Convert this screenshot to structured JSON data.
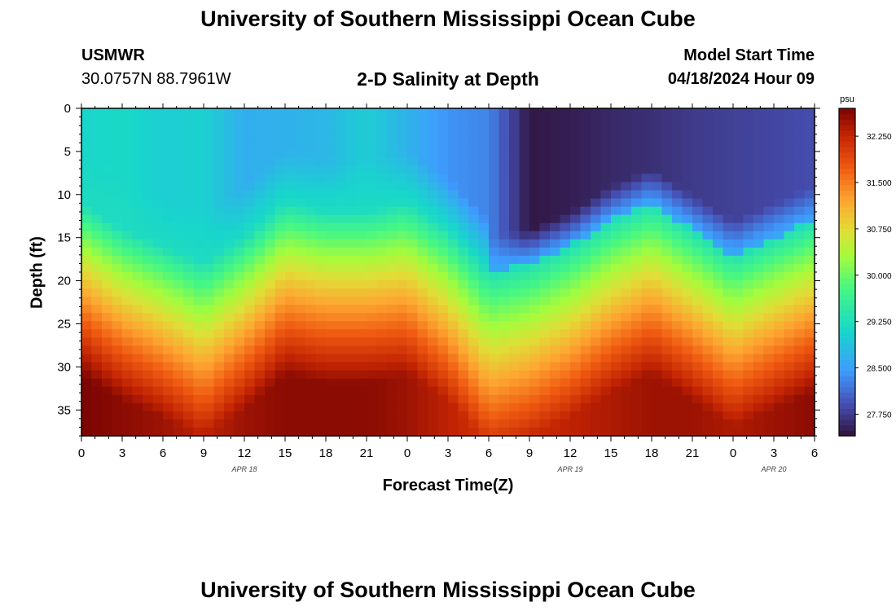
{
  "header": {
    "title_top": "University of Southern Mississippi Ocean Cube",
    "title_bottom": "University of Southern Mississippi Ocean Cube",
    "station": "USMWR",
    "coordinates": "30.0757N  88.7961W",
    "plot_title": "2-D Salinity at Depth",
    "start_label": "Model Start Time",
    "start_value": "04/18/2024 Hour 09"
  },
  "chart_data": {
    "type": "heatmap",
    "title": "2-D Salinity at Depth",
    "xlabel": "Forecast Time(Z)",
    "ylabel": "Depth (ft)",
    "x_range_hours": [
      0,
      54
    ],
    "y_range_ft": [
      0,
      38
    ],
    "x_ticks": [
      {
        "h": 0,
        "label": "0"
      },
      {
        "h": 3,
        "label": "3"
      },
      {
        "h": 6,
        "label": "6"
      },
      {
        "h": 9,
        "label": "9"
      },
      {
        "h": 12,
        "label": "12"
      },
      {
        "h": 15,
        "label": "15"
      },
      {
        "h": 18,
        "label": "18"
      },
      {
        "h": 21,
        "label": "21"
      },
      {
        "h": 24,
        "label": "0"
      },
      {
        "h": 27,
        "label": "3"
      },
      {
        "h": 30,
        "label": "6"
      },
      {
        "h": 33,
        "label": "9"
      },
      {
        "h": 36,
        "label": "12"
      },
      {
        "h": 39,
        "label": "15"
      },
      {
        "h": 42,
        "label": "18"
      },
      {
        "h": 45,
        "label": "21"
      },
      {
        "h": 48,
        "label": "0"
      },
      {
        "h": 51,
        "label": "3"
      },
      {
        "h": 54,
        "label": "6"
      }
    ],
    "date_labels": [
      {
        "h": 12,
        "label": "APR 18"
      },
      {
        "h": 36,
        "label": "APR 19"
      },
      {
        "h": 51,
        "label": "APR 20"
      }
    ],
    "y_ticks": [
      0,
      5,
      10,
      15,
      20,
      25,
      30,
      35
    ],
    "colorbar": {
      "unit": "psu",
      "min": 27.4,
      "max": 32.7,
      "ticks": [
        "27.750",
        "28.500",
        "29.250",
        "30.000",
        "30.750",
        "31.500",
        "32.250"
      ]
    },
    "fresh_top_boundary": {
      "hours": [
        0,
        3,
        6,
        9,
        12,
        15,
        18,
        21,
        24,
        27,
        30,
        33,
        36,
        39,
        42,
        45,
        48,
        51,
        54
      ],
      "depth_ft": [
        0,
        0,
        0,
        0,
        0,
        0,
        0,
        0,
        0,
        0,
        0,
        0,
        0,
        0,
        0,
        0,
        0,
        0,
        0
      ],
      "salinity_psu": [
        29.1,
        29.15,
        29.0,
        29.05,
        28.65,
        28.7,
        28.75,
        29.0,
        28.7,
        28.4,
        28.3,
        27.45,
        27.5,
        27.6,
        27.65,
        27.75,
        27.8,
        27.85,
        27.9
      ]
    },
    "halocline_depth_ft": {
      "hours": [
        0,
        3,
        6,
        9,
        12,
        15,
        18,
        21,
        24,
        27,
        30,
        33,
        36,
        39,
        42,
        45,
        48,
        51,
        54
      ],
      "values": [
        21,
        24,
        26,
        28,
        25,
        21,
        22,
        22,
        21,
        24,
        29,
        28,
        26,
        23,
        21,
        24,
        27,
        25,
        23
      ]
    },
    "bottom_salinity_psu": {
      "hours": [
        0,
        3,
        6,
        9,
        12,
        15,
        18,
        21,
        24,
        27,
        30,
        33,
        36,
        39,
        42,
        45,
        48,
        51,
        54
      ],
      "values": [
        32.7,
        32.6,
        32.5,
        32.3,
        32.5,
        32.6,
        32.6,
        32.6,
        32.5,
        32.3,
        32.1,
        32.2,
        32.3,
        32.4,
        32.5,
        32.5,
        32.4,
        32.5,
        32.6
      ]
    }
  }
}
